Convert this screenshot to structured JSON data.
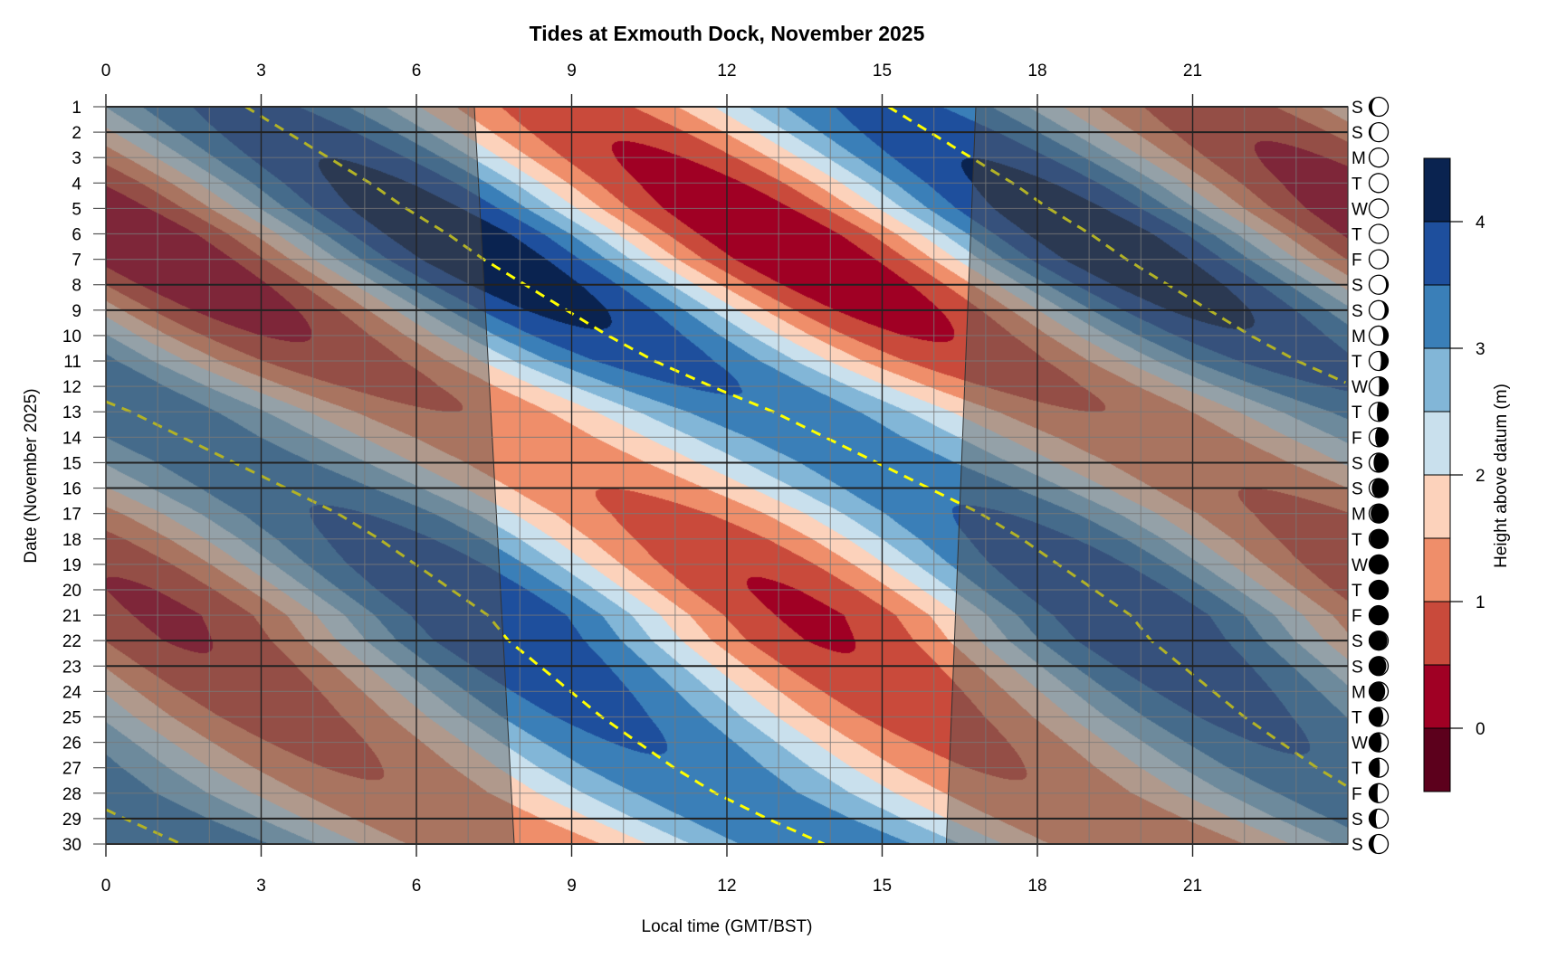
{
  "chart_data": {
    "type": "heatmap",
    "subtype": "filled-contour",
    "title": "Tides at Exmouth Dock, November 2025",
    "xlabel": "Local time (GMT/BST)",
    "ylabel": "Date (November 2025)",
    "colorbar_label": "Height above datum (m)",
    "xlim": [
      0,
      24
    ],
    "ylim": [
      1,
      30
    ],
    "x_ticks": [
      "0",
      "3",
      "6",
      "9",
      "12",
      "15",
      "18",
      "21"
    ],
    "x_tick_values": [
      0,
      3,
      6,
      9,
      12,
      15,
      18,
      21
    ],
    "y_ticks": [
      "1",
      "2",
      "3",
      "4",
      "5",
      "6",
      "7",
      "8",
      "9",
      "10",
      "11",
      "12",
      "13",
      "14",
      "15",
      "16",
      "17",
      "18",
      "19",
      "20",
      "21",
      "22",
      "23",
      "24",
      "25",
      "26",
      "27",
      "28",
      "29",
      "30"
    ],
    "weekdays": [
      "S",
      "S",
      "M",
      "T",
      "W",
      "T",
      "F",
      "S",
      "S",
      "M",
      "T",
      "W",
      "T",
      "F",
      "S",
      "S",
      "M",
      "T",
      "W",
      "T",
      "F",
      "S",
      "S",
      "M",
      "T",
      "W",
      "T",
      "F",
      "S",
      "S"
    ],
    "weekend_days": [
      1,
      2,
      8,
      9,
      15,
      16,
      22,
      23,
      29,
      30
    ],
    "moon_phase_fraction": [
      0.37,
      0.4,
      0.44,
      0.47,
      0.5,
      0.54,
      0.57,
      0.61,
      0.64,
      0.67,
      0.71,
      0.74,
      0.78,
      0.81,
      0.84,
      0.88,
      0.91,
      0.94,
      0.98,
      0.0,
      0.03,
      0.07,
      0.1,
      0.13,
      0.17,
      0.2,
      0.23,
      0.27,
      0.3,
      0.34
    ],
    "colorbar_ticks": [
      "0",
      "1",
      "2",
      "3",
      "4"
    ],
    "colorbar_tick_values": [
      0,
      1,
      2,
      3,
      4
    ],
    "levels": [
      -0.5,
      0,
      0.5,
      1,
      1.5,
      2,
      2.5,
      3,
      3.5,
      4,
      4.5
    ],
    "level_colors": [
      "#5c001c",
      "#a00024",
      "#c94a3b",
      "#ef8e6a",
      "#fcd2bb",
      "#c9e0ed",
      "#82b6d7",
      "#3a7fb8",
      "#1e4f9d",
      "#0a2350"
    ],
    "mean_level_m": 2.2,
    "tidal_period_h": 12.42,
    "high_water_time_h": [
      2.7,
      3.5,
      4.3,
      5.1,
      5.8,
      6.6,
      7.3,
      8.1,
      8.9,
      9.7,
      10.6,
      11.7,
      12.9,
      13.9,
      14.9,
      15.9,
      16.9,
      17.7,
      18.4,
      19.1,
      19.8,
      20.2,
      20.8,
      21.4,
      22.0,
      22.7,
      23.4,
      24.2,
      25.2,
      26.3
    ],
    "tidal_amplitude_m": [
      1.5,
      1.65,
      1.8,
      1.95,
      2.1,
      2.2,
      2.2,
      2.1,
      1.95,
      1.75,
      1.55,
      1.35,
      1.2,
      1.1,
      1.1,
      1.2,
      1.35,
      1.5,
      1.65,
      1.75,
      1.8,
      1.75,
      1.65,
      1.55,
      1.45,
      1.35,
      1.25,
      1.15,
      1.15,
      1.2
    ],
    "sunrise_h": [
      7.12,
      7.89
    ],
    "sunset_h": [
      16.81,
      16.24
    ],
    "high_water_line_color": "#ffff00",
    "grid": true
  }
}
